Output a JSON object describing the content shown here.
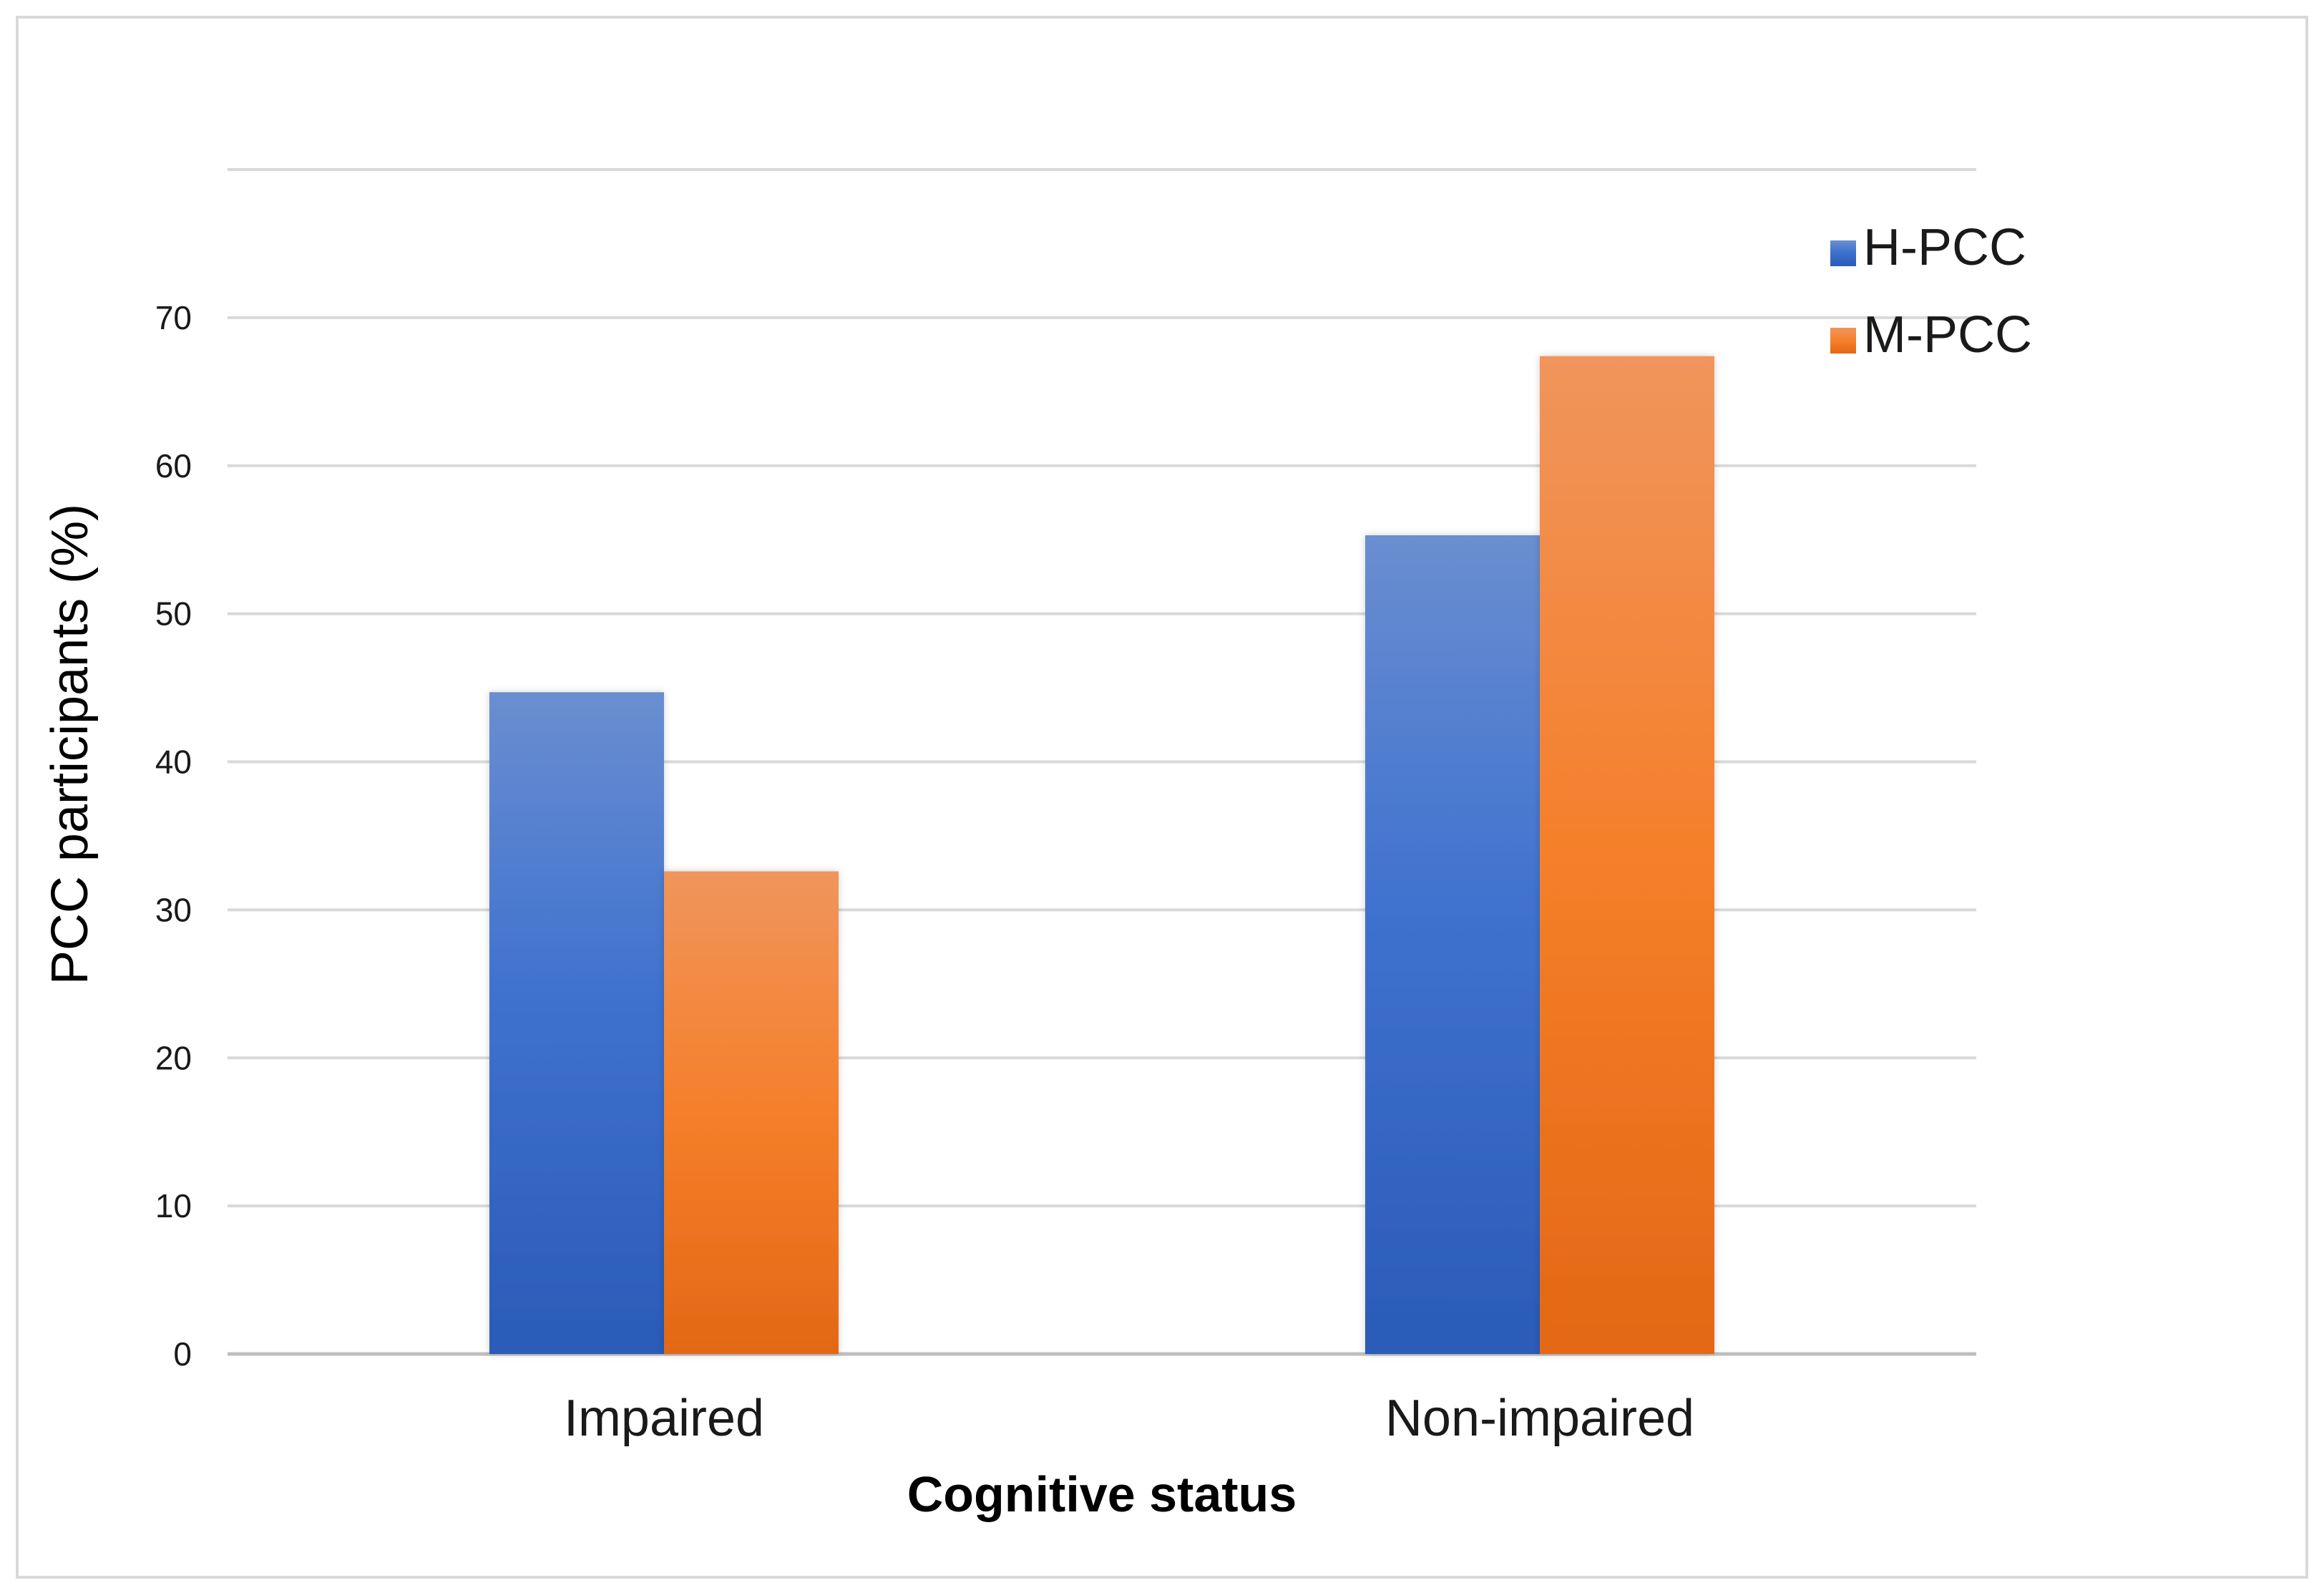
{
  "chart_data": {
    "type": "bar",
    "title": "",
    "xlabel": "Cognitive status",
    "ylabel": "PCC participants (%)",
    "categories": [
      "Impaired",
      "Non-impaired"
    ],
    "series": [
      {
        "name": "H-PCC",
        "values": [
          44.7,
          55.3
        ],
        "color": "#4472c4"
      },
      {
        "name": "M-PCC",
        "values": [
          32.6,
          67.4
        ],
        "color": "#ed7d31"
      }
    ],
    "ylim": [
      0,
      80
    ],
    "yticks": [
      0,
      10,
      20,
      30,
      40,
      50,
      60,
      70
    ],
    "grid": true,
    "legend_position": "top-right"
  }
}
